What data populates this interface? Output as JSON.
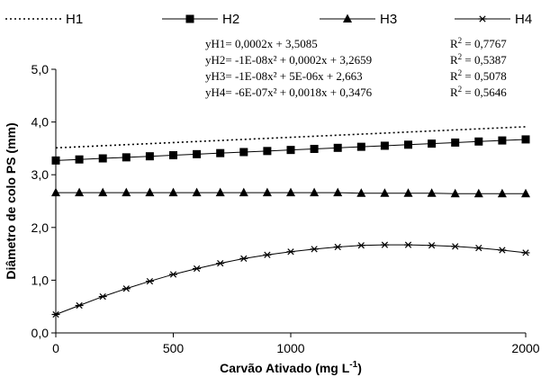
{
  "chart_data": {
    "type": "line",
    "xlabel": "Carvão Ativado (mg L",
    "xlabel_sup": "-1",
    "xlabel_end": ")",
    "ylabel": "Diâmetro de colo PS (mm)",
    "xlim": [
      0,
      2000
    ],
    "ylim": [
      0,
      5
    ],
    "xticks": [
      0,
      500,
      1000,
      2000
    ],
    "xtick_labels": [
      "0",
      "500",
      "1000",
      "2000"
    ],
    "yticks": [
      0,
      1,
      2,
      3,
      4,
      5
    ],
    "ytick_labels": [
      "0,0",
      "1,0",
      "2,0",
      "3,0",
      "4,0",
      "5,0"
    ],
    "grid": false,
    "legend_position": "top",
    "x": [
      0,
      100,
      200,
      300,
      400,
      500,
      600,
      700,
      800,
      900,
      1000,
      1100,
      1200,
      1300,
      1400,
      1500,
      1600,
      1700,
      1800,
      1900,
      2000
    ],
    "series": [
      {
        "name": "H1",
        "style": "dotted",
        "marker": "none",
        "values": [
          3.51,
          3.53,
          3.55,
          3.57,
          3.59,
          3.61,
          3.63,
          3.65,
          3.67,
          3.69,
          3.71,
          3.73,
          3.75,
          3.77,
          3.79,
          3.81,
          3.83,
          3.85,
          3.87,
          3.89,
          3.91
        ]
      },
      {
        "name": "H2",
        "style": "solid",
        "marker": "square",
        "values": [
          3.27,
          3.29,
          3.31,
          3.33,
          3.35,
          3.37,
          3.39,
          3.41,
          3.43,
          3.45,
          3.47,
          3.49,
          3.51,
          3.53,
          3.55,
          3.57,
          3.59,
          3.61,
          3.63,
          3.65,
          3.67
        ]
      },
      {
        "name": "H3",
        "style": "solid",
        "marker": "triangle",
        "values": [
          2.66,
          2.66,
          2.66,
          2.66,
          2.66,
          2.66,
          2.66,
          2.66,
          2.66,
          2.66,
          2.66,
          2.66,
          2.66,
          2.65,
          2.65,
          2.65,
          2.65,
          2.64,
          2.64,
          2.64,
          2.64
        ]
      },
      {
        "name": "H4",
        "style": "solid",
        "marker": "asterisk",
        "values": [
          0.35,
          0.52,
          0.69,
          0.84,
          0.98,
          1.11,
          1.22,
          1.32,
          1.41,
          1.48,
          1.54,
          1.59,
          1.63,
          1.66,
          1.67,
          1.67,
          1.66,
          1.64,
          1.61,
          1.57,
          1.52
        ]
      }
    ],
    "equations": [
      {
        "text": "yH1= 0,0002x + 3,5085",
        "r2": "= 0,7767"
      },
      {
        "text": "yH2= -1E-08x² + 0,0002x + 3,2659",
        "r2": "= 0,5387"
      },
      {
        "text": "yH3= -1E-08x² + 5E-06x + 2,663",
        "r2": "= 0,5078"
      },
      {
        "text": "yH4= -6E-07x² + 0,0018x + 0,3476",
        "r2": "= 0,5646"
      }
    ],
    "r2_label": "R",
    "r2_sup": "2",
    "colors": {
      "line": "#000000",
      "background": "#ffffff"
    }
  }
}
